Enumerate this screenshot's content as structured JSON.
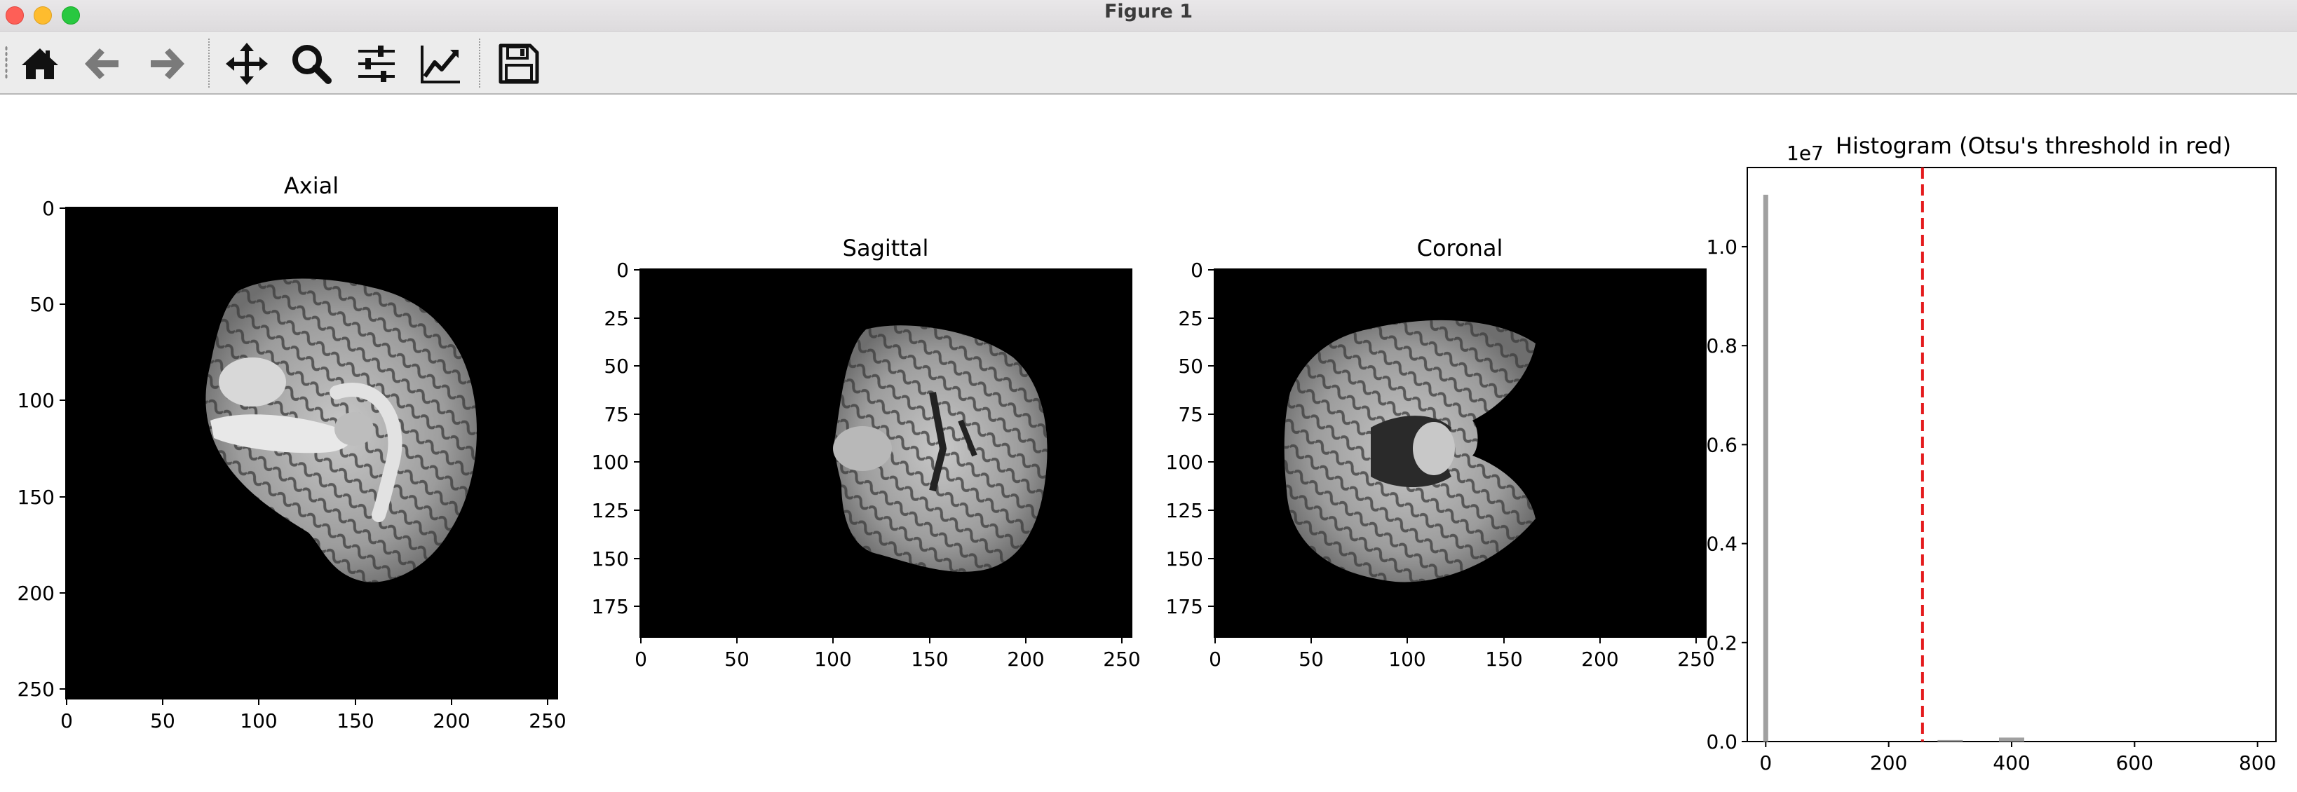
{
  "window": {
    "title": "Figure 1"
  },
  "toolbar": {
    "buttons": [
      {
        "name": "home-icon",
        "tooltip": "Home"
      },
      {
        "name": "back-icon",
        "tooltip": "Back"
      },
      {
        "name": "forward-icon",
        "tooltip": "Forward"
      },
      {
        "name": "pan-icon",
        "tooltip": "Pan"
      },
      {
        "name": "zoom-icon",
        "tooltip": "Zoom"
      },
      {
        "name": "configure-subplots-icon",
        "tooltip": "Subplots"
      },
      {
        "name": "edit-axis-icon",
        "tooltip": "Customize"
      },
      {
        "name": "save-icon",
        "tooltip": "Save"
      }
    ]
  },
  "panels": {
    "axial": {
      "title": "Axial",
      "xticks": [
        "0",
        "50",
        "100",
        "150",
        "200",
        "250"
      ],
      "yticks": [
        "0",
        "50",
        "100",
        "150",
        "200",
        "250"
      ]
    },
    "sagittal": {
      "title": "Sagittal",
      "xticks": [
        "0",
        "50",
        "100",
        "150",
        "200",
        "250"
      ],
      "yticks": [
        "0",
        "25",
        "50",
        "75",
        "100",
        "125",
        "150",
        "175"
      ]
    },
    "coronal": {
      "title": "Coronal",
      "xticks": [
        "0",
        "50",
        "100",
        "150",
        "200",
        "250"
      ],
      "yticks": [
        "0",
        "25",
        "50",
        "75",
        "100",
        "125",
        "150",
        "175"
      ]
    }
  },
  "chart_data": {
    "type": "bar",
    "title": "Histogram (Otsu's threshold in red)",
    "y_offset_label": "1e7",
    "xticks": [
      "0",
      "200",
      "400",
      "600",
      "800"
    ],
    "yticks": [
      "0.0",
      "0.2",
      "0.4",
      "0.6",
      "0.8",
      "1.0"
    ],
    "xlim": [
      -30,
      830
    ],
    "ylim": [
      0,
      1.16
    ],
    "x": [
      0,
      300,
      400
    ],
    "values": [
      1.105,
      0.003,
      0.008
    ],
    "threshold": 255,
    "colors": {
      "bars": "#a0a0a0",
      "threshold": "#e41a1c"
    }
  }
}
